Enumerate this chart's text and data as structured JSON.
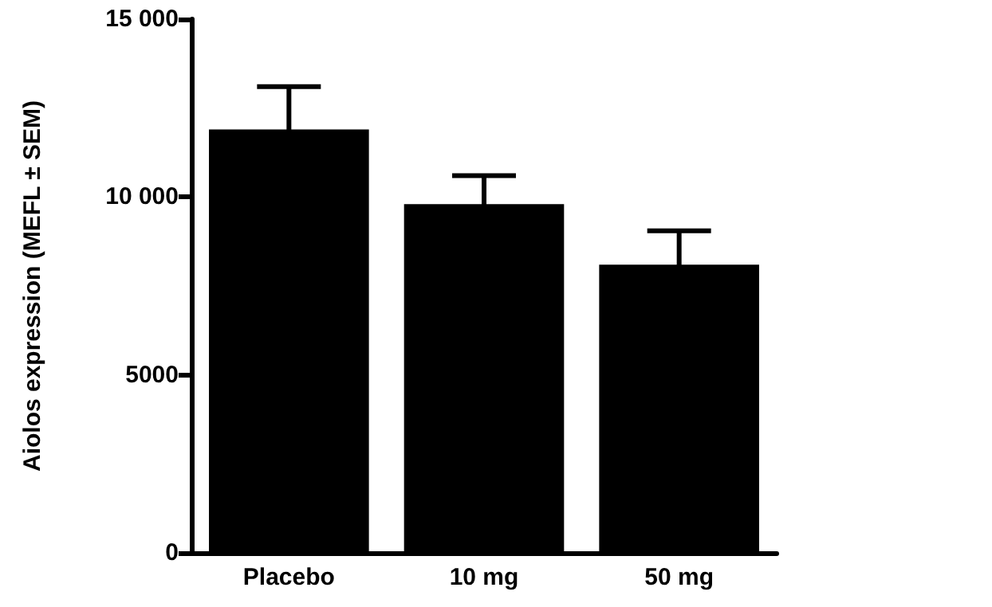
{
  "chart_data": {
    "type": "bar",
    "ylabel": "Aiolos expression (MEFL ± SEM)",
    "categories": [
      "Placebo",
      "10 mg",
      "50 mg"
    ],
    "values": [
      11900,
      9800,
      8100
    ],
    "errors": [
      1200,
      800,
      950
    ],
    "color": "#000000",
    "ylim": [
      0,
      15000
    ],
    "yticks": [
      0,
      5000,
      {
        "value": 10000,
        "label": "10 000"
      },
      {
        "value": 15000,
        "label": "15 000"
      }
    ],
    "grid": false
  }
}
